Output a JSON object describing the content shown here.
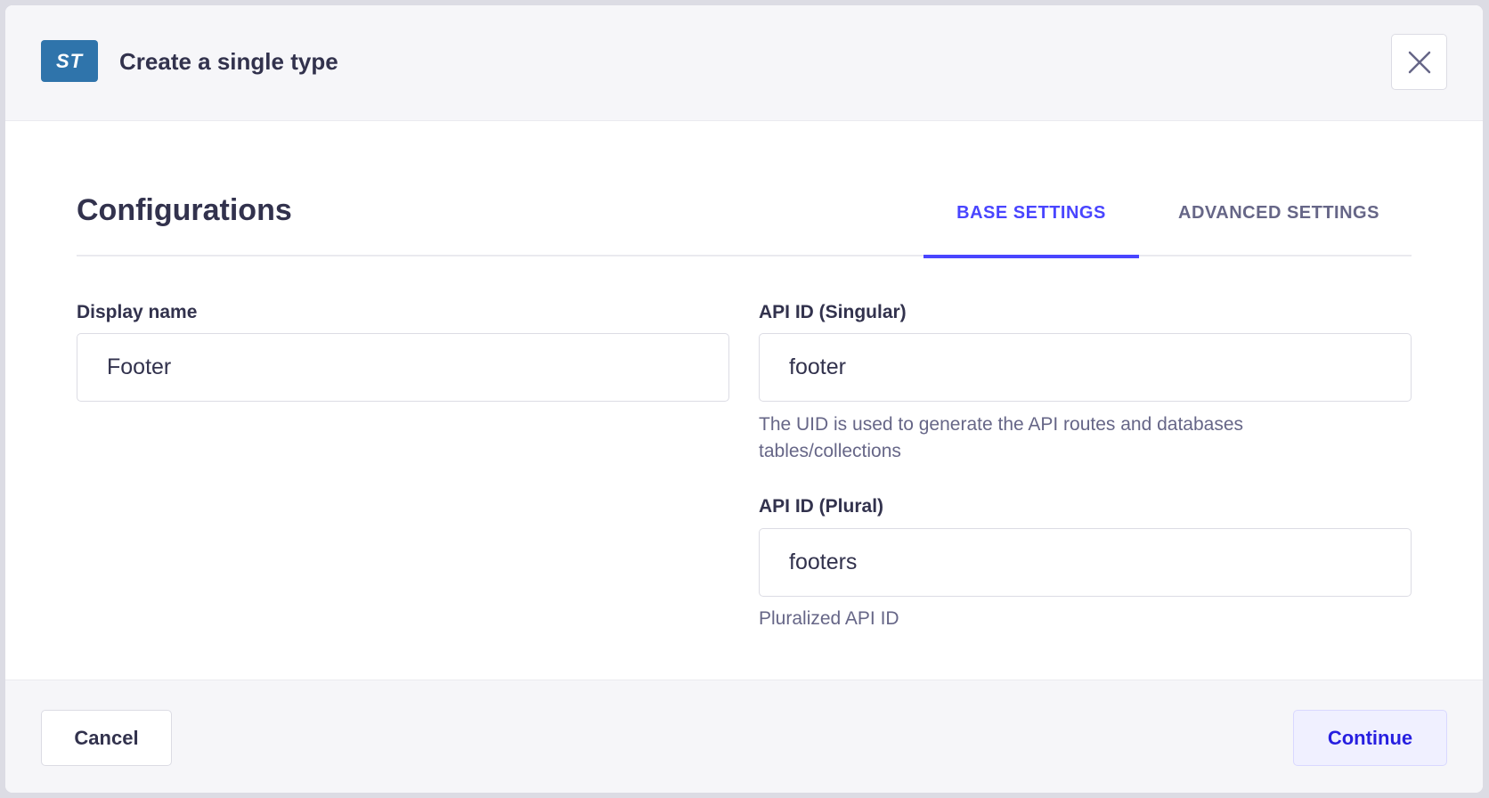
{
  "modal": {
    "badge": "ST",
    "title": "Create a single type",
    "close_icon": "close-icon"
  },
  "content": {
    "heading": "Configurations",
    "tabs": [
      {
        "label": "BASE SETTINGS",
        "active": true
      },
      {
        "label": "ADVANCED SETTINGS",
        "active": false
      }
    ],
    "display_name": {
      "label": "Display name",
      "value": "Footer"
    },
    "api_id_singular": {
      "label": "API ID (Singular)",
      "value": "footer",
      "hint": "The UID is used to generate the API routes and databases tables/collections"
    },
    "api_id_plural": {
      "label": "API ID (Plural)",
      "value": "footers",
      "hint": "Pluralized API ID"
    }
  },
  "footer": {
    "cancel_label": "Cancel",
    "continue_label": "Continue"
  },
  "colors": {
    "accent": "#4945ff",
    "badge": "#2f74ab"
  }
}
